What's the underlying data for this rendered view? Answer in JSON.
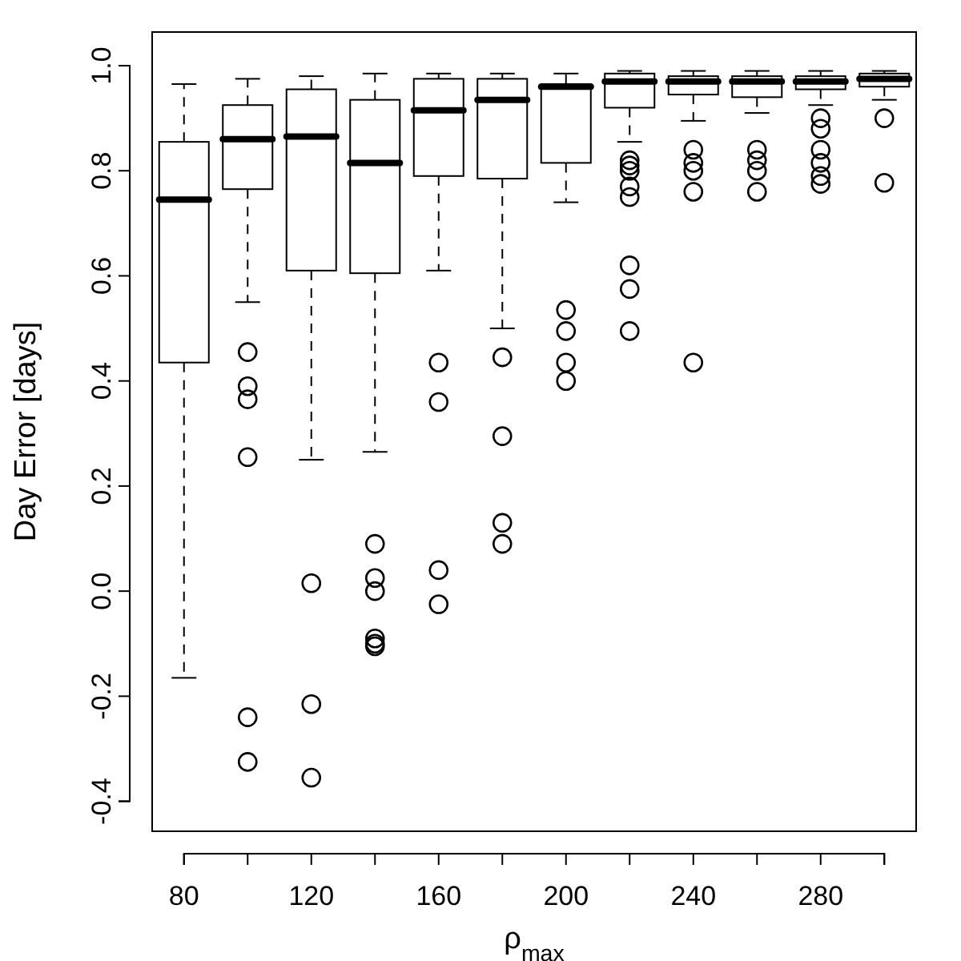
{
  "chart_data": {
    "type": "box",
    "xlabel": "ρ$_{max}$",
    "ylabel": "Day Error [days]",
    "categories": [
      "80",
      null,
      "120",
      null,
      "160",
      null,
      "200",
      null,
      "240",
      null,
      "280",
      null
    ],
    "ylim": [
      -0.457,
      1.064
    ],
    "yticks": [
      {
        "value": -0.4,
        "label": "-0.4"
      },
      {
        "value": -0.2,
        "label": "-0.2"
      },
      {
        "value": 0,
        "label": "0.0"
      },
      {
        "value": 0.2,
        "label": "0.2"
      },
      {
        "value": 0.4,
        "label": "0.4"
      },
      {
        "value": 0.6,
        "label": "0.6"
      },
      {
        "value": 0.8,
        "label": "0.8"
      },
      {
        "value": 1.0,
        "label": "1.0"
      }
    ],
    "grid": false,
    "boxes": [
      {
        "low": -0.165,
        "q1": 0.435,
        "median": 0.745,
        "q3": 0.855,
        "high": 0.965
      },
      {
        "low": 0.55,
        "q1": 0.765,
        "median": 0.86,
        "q3": 0.925,
        "high": 0.975,
        "outliers": [
          0.455,
          0.39,
          0.365,
          0.255,
          -0.24,
          -0.325
        ]
      },
      {
        "low": 0.25,
        "q1": 0.61,
        "median": 0.865,
        "q3": 0.955,
        "high": 0.98,
        "outliers": [
          0.015,
          -0.215,
          -0.355
        ]
      },
      {
        "low": 0.265,
        "q1": 0.605,
        "median": 0.815,
        "q3": 0.935,
        "high": 0.985,
        "outliers": [
          0.09,
          0.025,
          0.0,
          -0.09,
          -0.1,
          -0.105
        ]
      },
      {
        "low": 0.61,
        "q1": 0.79,
        "median": 0.915,
        "q3": 0.975,
        "high": 0.985,
        "outliers": [
          0.435,
          0.36,
          0.04,
          -0.025
        ]
      },
      {
        "low": 0.5,
        "q1": 0.785,
        "median": 0.935,
        "q3": 0.975,
        "high": 0.985,
        "outliers": [
          0.445,
          0.295,
          0.13,
          0.09
        ]
      },
      {
        "low": 0.74,
        "q1": 0.815,
        "median": 0.96,
        "q3": 0.965,
        "high": 0.985,
        "outliers": [
          0.535,
          0.495,
          0.435,
          0.4
        ]
      },
      {
        "low": 0.855,
        "q1": 0.92,
        "median": 0.97,
        "q3": 0.985,
        "high": 0.99,
        "outliers": [
          0.82,
          0.81,
          0.8,
          0.77,
          0.75,
          0.62,
          0.575,
          0.495
        ]
      },
      {
        "low": 0.895,
        "q1": 0.945,
        "median": 0.97,
        "q3": 0.98,
        "high": 0.99,
        "outliers": [
          0.84,
          0.815,
          0.8,
          0.76,
          0.435
        ]
      },
      {
        "low": 0.91,
        "q1": 0.94,
        "median": 0.97,
        "q3": 0.98,
        "high": 0.99,
        "outliers": [
          0.84,
          0.82,
          0.8,
          0.76
        ]
      },
      {
        "low": 0.925,
        "q1": 0.955,
        "median": 0.97,
        "q3": 0.98,
        "high": 0.99,
        "outliers": [
          0.9,
          0.88,
          0.84,
          0.815,
          0.79,
          0.775
        ]
      },
      {
        "low": 0.935,
        "q1": 0.96,
        "median": 0.975,
        "q3": 0.985,
        "high": 0.99,
        "outliers": [
          0.9,
          0.777
        ]
      }
    ]
  }
}
